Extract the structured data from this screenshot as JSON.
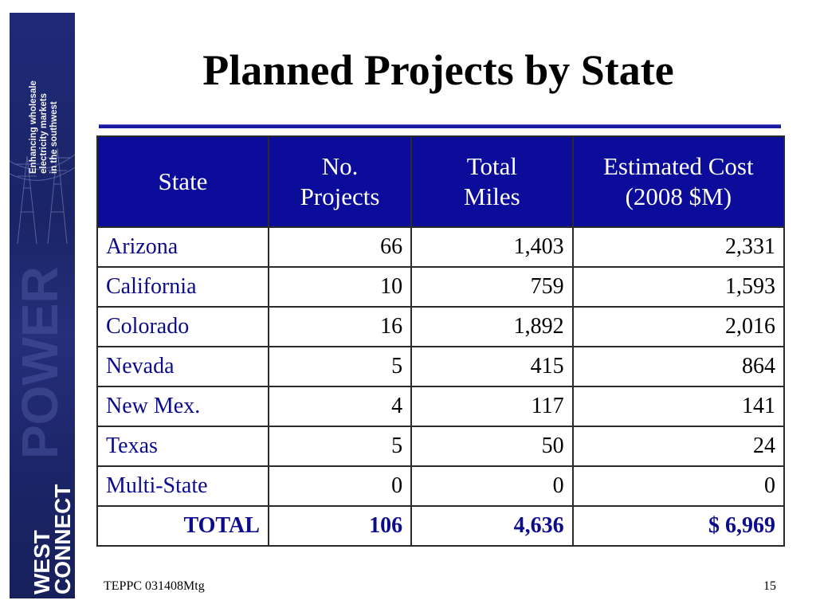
{
  "sidebar": {
    "tagline": [
      "Enhancing wholesale",
      "electricity markets",
      "in the southwest"
    ],
    "logo": [
      "WEST",
      "CONNECT"
    ],
    "watermark": "POWER"
  },
  "slide": {
    "title": "Planned Projects by State"
  },
  "table": {
    "headers": {
      "state": "State",
      "projects": [
        "No.",
        "Projects"
      ],
      "miles": [
        "Total",
        "Miles"
      ],
      "cost": [
        "Estimated Cost",
        "(2008 $M)"
      ]
    },
    "rows": [
      {
        "state": "Arizona",
        "projects": "66",
        "miles": "1,403",
        "cost": "2,331"
      },
      {
        "state": "California",
        "projects": "10",
        "miles": "759",
        "cost": "1,593"
      },
      {
        "state": "Colorado",
        "projects": "16",
        "miles": "1,892",
        "cost": "2,016"
      },
      {
        "state": "Nevada",
        "projects": "5",
        "miles": "415",
        "cost": "864"
      },
      {
        "state": "New Mex.",
        "projects": "4",
        "miles": "117",
        "cost": "141"
      },
      {
        "state": "Texas",
        "projects": "5",
        "miles": "50",
        "cost": "24"
      },
      {
        "state": "Multi-State",
        "projects": "0",
        "miles": "0",
        "cost": "0"
      }
    ],
    "total": {
      "state": "TOTAL",
      "projects": "106",
      "miles": "4,636",
      "cost": "$ 6,969"
    }
  },
  "footer": {
    "left": "TEPPC 031408Mtg",
    "page_number": "15"
  },
  "colors": {
    "header_bg": "#0c0c9a",
    "accent_text": "#0b0b8c",
    "banner": "#1e2a78"
  }
}
